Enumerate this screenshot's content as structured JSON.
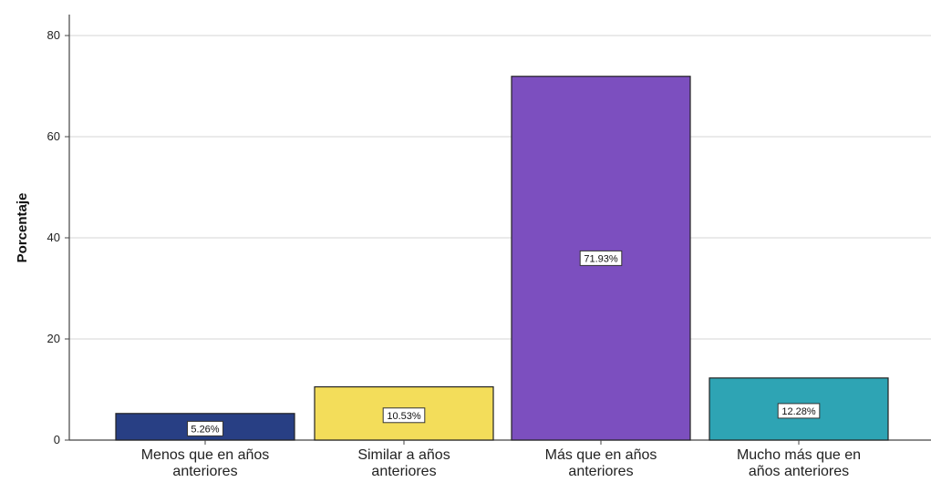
{
  "chart_data": {
    "type": "bar",
    "title": "",
    "xlabel": "",
    "ylabel": "Porcentaje",
    "ylim": [
      0,
      82
    ],
    "yticks": [
      0,
      20,
      40,
      60,
      80
    ],
    "grid": true,
    "legend": "none",
    "categories": [
      [
        "Menos que en años",
        "anteriores"
      ],
      [
        "Similar a años",
        "anteriores"
      ],
      [
        "Más que en años",
        "anteriores"
      ],
      [
        "Mucho más que en",
        "años anteriores"
      ]
    ],
    "values": [
      5.26,
      10.53,
      71.93,
      12.28
    ],
    "data_labels": [
      "5.26%",
      "10.53%",
      "71.93%",
      "12.28%"
    ],
    "colors": [
      "#283f84",
      "#f3dd5a",
      "#7c4fbf",
      "#2ea4b4"
    ]
  }
}
